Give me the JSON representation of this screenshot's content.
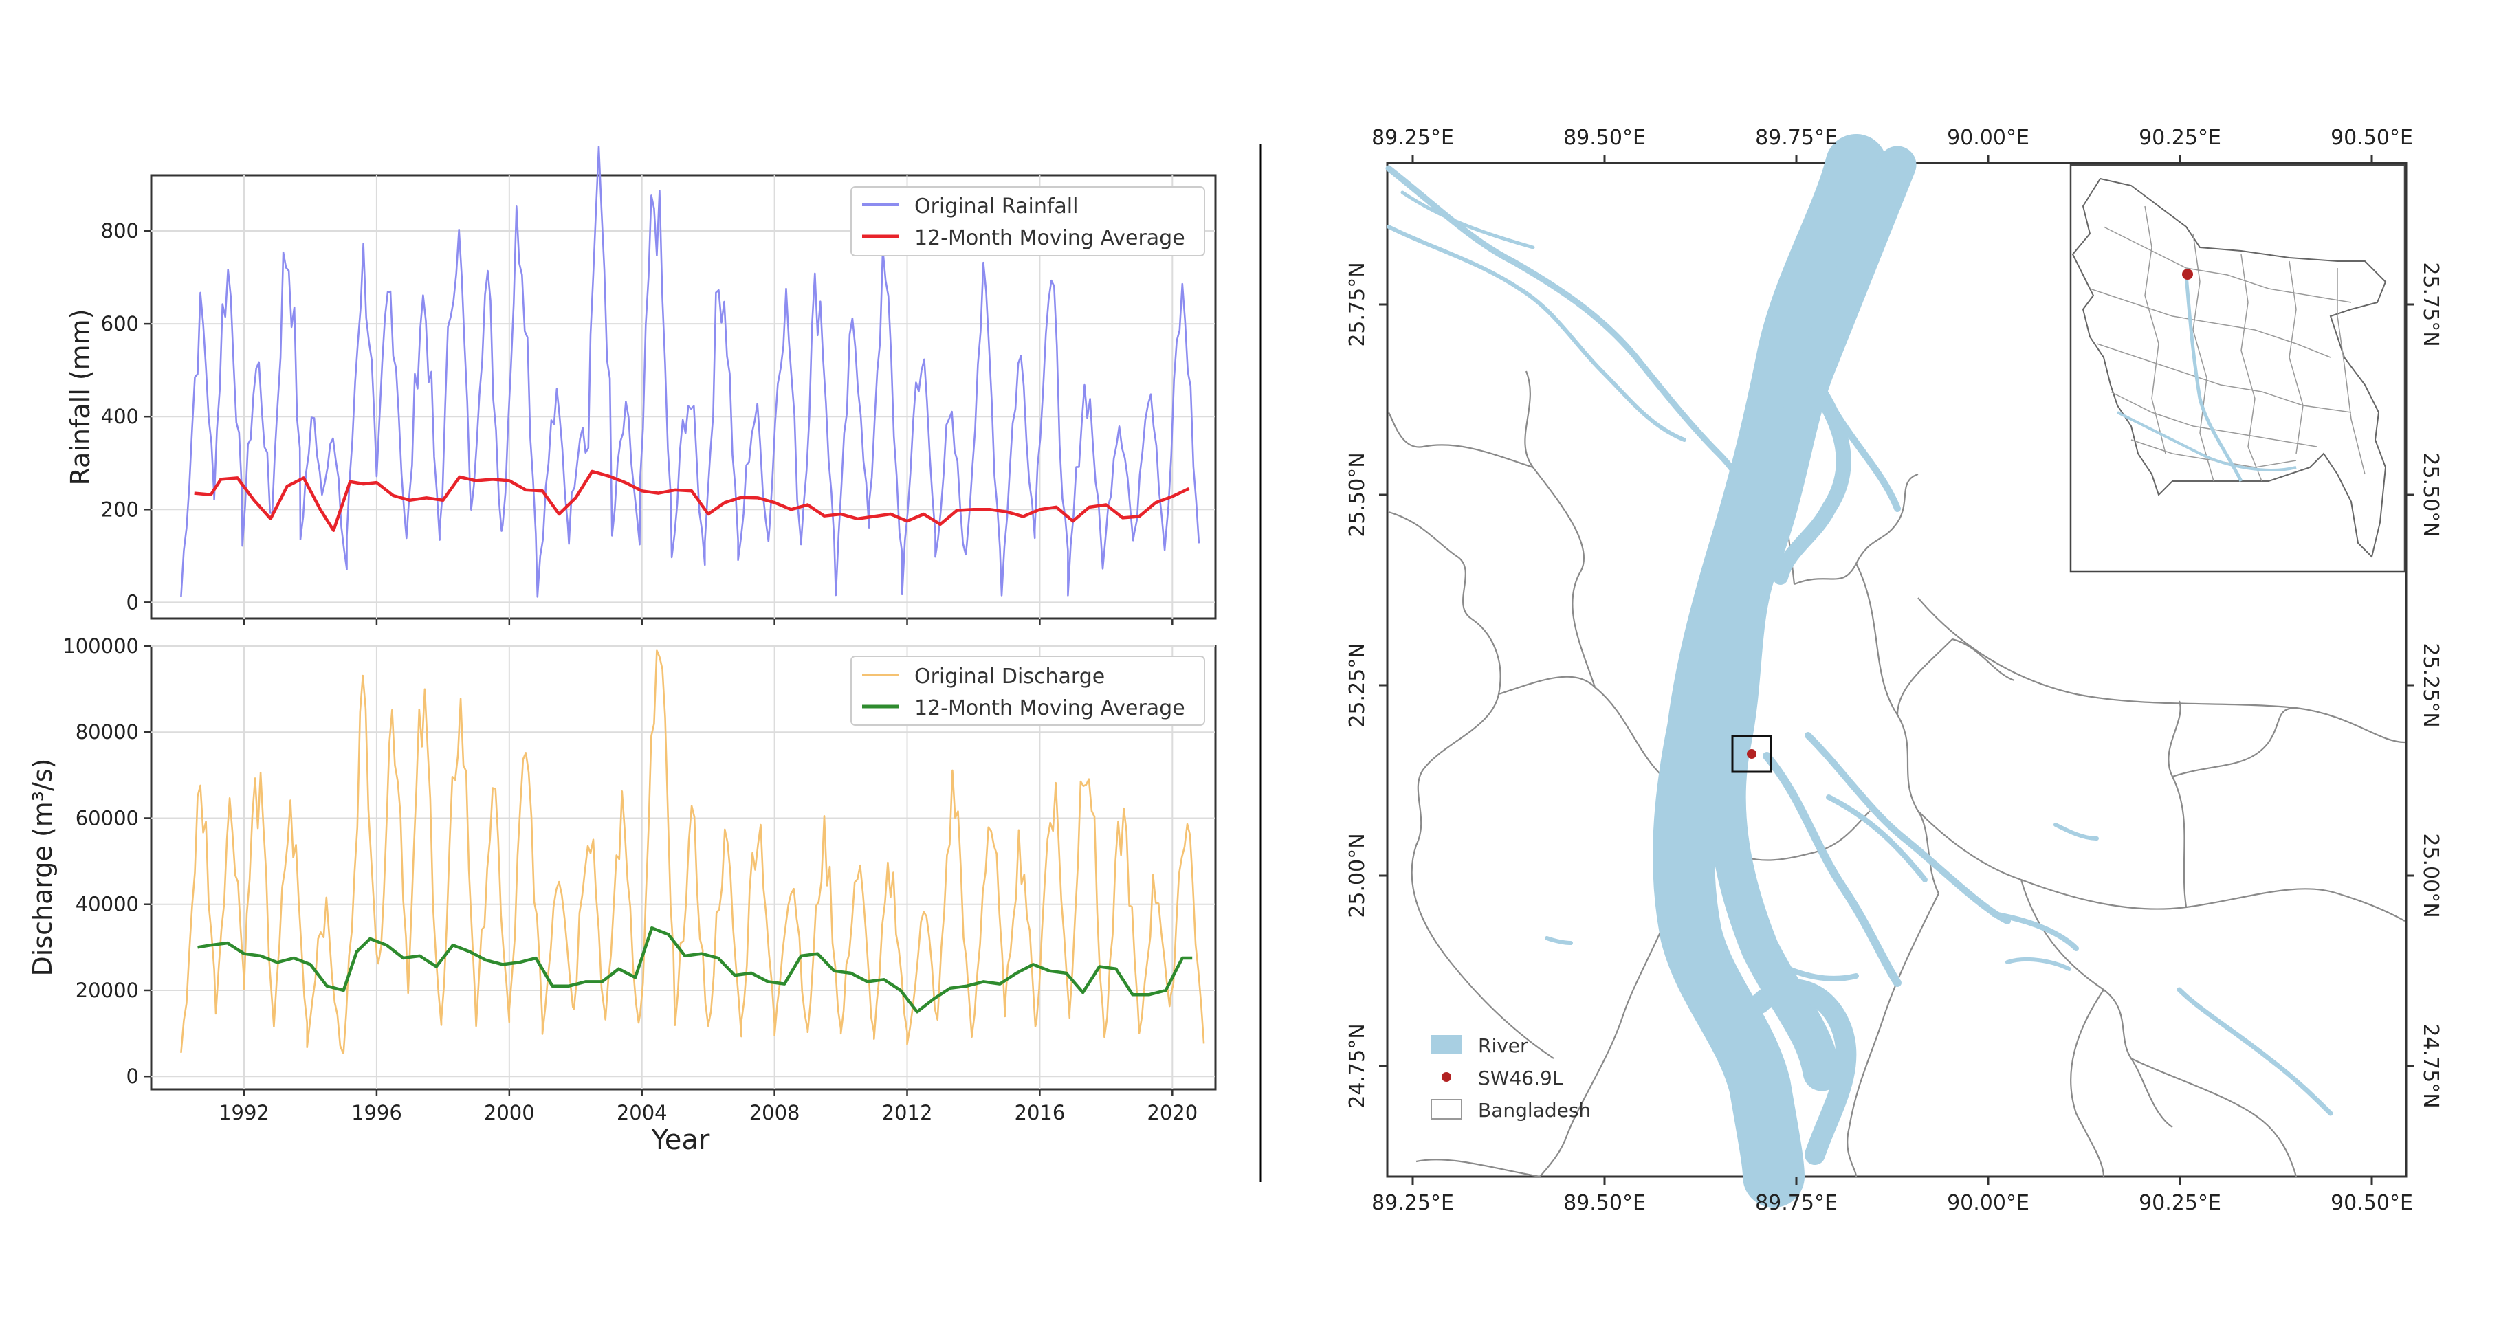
{
  "chart_data": [
    {
      "type": "line",
      "ylabel": "Rainfall (mm)",
      "xlabel": "",
      "xlim": [
        1989.2,
        2021.3
      ],
      "ylim": [
        -35,
        920
      ],
      "yticks": [
        0,
        200,
        400,
        600,
        800
      ],
      "xticks": [
        1992,
        1996,
        2000,
        2004,
        2008,
        2012,
        2016,
        2020
      ],
      "xticklabels_visible": false,
      "grid": true,
      "legend": "top-right",
      "colors": {
        "original": "#8c8cf0",
        "moving_average": "#e8232a"
      },
      "series": [
        {
          "name": "Original Rainfall",
          "peaks": [
            [
              1990.7,
              600
            ],
            [
              1991.5,
              705
            ],
            [
              1992.4,
              500
            ],
            [
              1993.3,
              760
            ],
            [
              1994.1,
              380
            ],
            [
              1994.6,
              350
            ],
            [
              1995.6,
              720
            ],
            [
              1996.4,
              660
            ],
            [
              1997.4,
              645
            ],
            [
              1998.4,
              790
            ],
            [
              1999.3,
              660
            ],
            [
              2000.3,
              820
            ],
            [
              2001.4,
              410
            ],
            [
              2002.2,
              400
            ],
            [
              2002.7,
              875
            ],
            [
              2003.5,
              380
            ],
            [
              2004.4,
              870
            ],
            [
              2005.4,
              440
            ],
            [
              2006.4,
              700
            ],
            [
              2007.4,
              400
            ],
            [
              2008.3,
              640
            ],
            [
              2009.3,
              670
            ],
            [
              2010.4,
              570
            ],
            [
              2011.3,
              680
            ],
            [
              2012.4,
              520
            ],
            [
              2013.3,
              370
            ],
            [
              2014.3,
              640
            ],
            [
              2015.4,
              510
            ],
            [
              2016.3,
              670
            ],
            [
              2017.4,
              460
            ],
            [
              2018.4,
              400
            ],
            [
              2019.3,
              480
            ],
            [
              2020.3,
              640
            ]
          ],
          "step": 0.0833
        },
        {
          "name": "12-Month Moving Average",
          "x": [
            1990.5,
            1991.0,
            1991.3,
            1991.8,
            1992.3,
            1992.8,
            1993.3,
            1993.8,
            1994.3,
            1994.7,
            1995.2,
            1995.6,
            1996.0,
            1996.5,
            1997.0,
            1997.5,
            1998.0,
            1998.5,
            1999.0,
            1999.5,
            2000.0,
            2000.5,
            2001.0,
            2001.5,
            2002.0,
            2002.5,
            2003.0,
            2003.5,
            2004.0,
            2004.5,
            2005.0,
            2005.5,
            2006.0,
            2006.5,
            2007.0,
            2007.5,
            2008.0,
            2008.5,
            2009.0,
            2009.5,
            2010.0,
            2010.5,
            2011.0,
            2011.5,
            2012.0,
            2012.5,
            2013.0,
            2013.5,
            2014.0,
            2014.5,
            2015.0,
            2015.5,
            2016.0,
            2016.5,
            2017.0,
            2017.5,
            2018.0,
            2018.5,
            2019.0,
            2019.5,
            2020.0,
            2020.5
          ],
          "values": [
            235,
            232,
            265,
            268,
            220,
            180,
            250,
            268,
            200,
            155,
            260,
            255,
            258,
            230,
            220,
            225,
            220,
            270,
            262,
            265,
            262,
            242,
            240,
            190,
            225,
            282,
            272,
            258,
            240,
            235,
            242,
            240,
            190,
            215,
            226,
            225,
            215,
            200,
            210,
            186,
            190,
            180,
            185,
            190,
            175,
            190,
            168,
            198,
            200,
            200,
            195,
            185,
            200,
            205,
            175,
            205,
            210,
            182,
            185,
            215,
            228,
            245
          ]
        }
      ]
    },
    {
      "type": "line",
      "ylabel": "Discharge (m³/s)",
      "xlabel": "Year",
      "xlim": [
        1989.2,
        2021.3
      ],
      "ylim": [
        -3000,
        100000
      ],
      "yticks": [
        0,
        20000,
        40000,
        60000,
        80000,
        100000
      ],
      "xticks": [
        1992,
        1996,
        2000,
        2004,
        2008,
        2012,
        2016,
        2020
      ],
      "grid": true,
      "legend": "top-right",
      "colors": {
        "original": "#f5c272",
        "moving_average": "#2e8b2e"
      },
      "series": [
        {
          "name": "Original Discharge",
          "peaks": [
            [
              1990.7,
              64000
            ],
            [
              1991.6,
              61000
            ],
            [
              1992.4,
              66000
            ],
            [
              1993.4,
              59000
            ],
            [
              1994.4,
              38000
            ],
            [
              1995.6,
              84000
            ],
            [
              1996.5,
              83000
            ],
            [
              1997.4,
              82000
            ],
            [
              1998.5,
              84000
            ],
            [
              1999.5,
              61000
            ],
            [
              2000.5,
              70000
            ],
            [
              2001.5,
              49000
            ],
            [
              2002.4,
              60000
            ],
            [
              2003.4,
              59000
            ],
            [
              2004.5,
              96000
            ],
            [
              2005.5,
              55000
            ],
            [
              2006.5,
              52000
            ],
            [
              2007.5,
              59000
            ],
            [
              2008.5,
              47000
            ],
            [
              2009.5,
              53000
            ],
            [
              2010.5,
              47000
            ],
            [
              2011.5,
              46000
            ],
            [
              2012.5,
              36000
            ],
            [
              2013.4,
              65000
            ],
            [
              2014.5,
              59000
            ],
            [
              2015.4,
              53000
            ],
            [
              2016.4,
              66000
            ],
            [
              2017.4,
              79000
            ],
            [
              2018.5,
              59000
            ],
            [
              2019.5,
              44000
            ],
            [
              2020.4,
              60000
            ]
          ],
          "step": 0.0833
        },
        {
          "name": "12-Month Moving Average",
          "x": [
            1990.6,
            1991.0,
            1991.5,
            1992.0,
            1992.5,
            1993.0,
            1993.5,
            1994.0,
            1994.5,
            1995.0,
            1995.4,
            1995.8,
            1996.3,
            1996.8,
            1997.3,
            1997.8,
            1998.3,
            1998.8,
            1999.3,
            1999.8,
            2000.3,
            2000.8,
            2001.3,
            2001.8,
            2002.3,
            2002.8,
            2003.3,
            2003.8,
            2004.3,
            2004.8,
            2005.3,
            2005.8,
            2006.3,
            2006.8,
            2007.3,
            2007.8,
            2008.3,
            2008.8,
            2009.3,
            2009.8,
            2010.3,
            2010.8,
            2011.3,
            2011.8,
            2012.3,
            2012.8,
            2013.3,
            2013.8,
            2014.3,
            2014.8,
            2015.3,
            2015.8,
            2016.3,
            2016.8,
            2017.3,
            2017.8,
            2018.3,
            2018.8,
            2019.3,
            2019.8,
            2020.3,
            2020.6
          ],
          "values": [
            30000,
            30500,
            31000,
            28500,
            28000,
            26500,
            27500,
            26000,
            21000,
            20000,
            29000,
            32000,
            30500,
            27500,
            28000,
            25500,
            30500,
            29000,
            27000,
            26000,
            26500,
            27500,
            21000,
            21000,
            22000,
            22000,
            25000,
            23000,
            34500,
            33000,
            28000,
            28500,
            27500,
            23500,
            24000,
            22000,
            21500,
            28000,
            28500,
            24500,
            24000,
            22000,
            22500,
            20000,
            15000,
            18000,
            20500,
            21000,
            22000,
            21500,
            24000,
            26000,
            24500,
            24000,
            19500,
            25500,
            25000,
            19000,
            19000,
            20000,
            27500,
            27500
          ]
        }
      ]
    }
  ],
  "map": {
    "top_ticks": [
      "89.25°E",
      "89.50°E",
      "89.75°E",
      "90.00°E",
      "90.25°E",
      "90.50°E"
    ],
    "bottom_ticks": [
      "89.25°E",
      "89.50°E",
      "89.75°E",
      "90.00°E",
      "90.25°E",
      "90.50°E"
    ],
    "left_ticks": [
      "25.75°N",
      "25.50°N",
      "25.25°N",
      "25.00°N",
      "24.75°N"
    ],
    "right_ticks": [
      "25.75°N",
      "25.50°N",
      "25.25°N",
      "25.00°N",
      "24.75°N"
    ],
    "legend": {
      "river": "River",
      "station": "SW46.9L",
      "country": "Bangladesh"
    },
    "colors": {
      "river": "#a8cfe2",
      "station": "#b22222",
      "border": "#888888"
    }
  }
}
